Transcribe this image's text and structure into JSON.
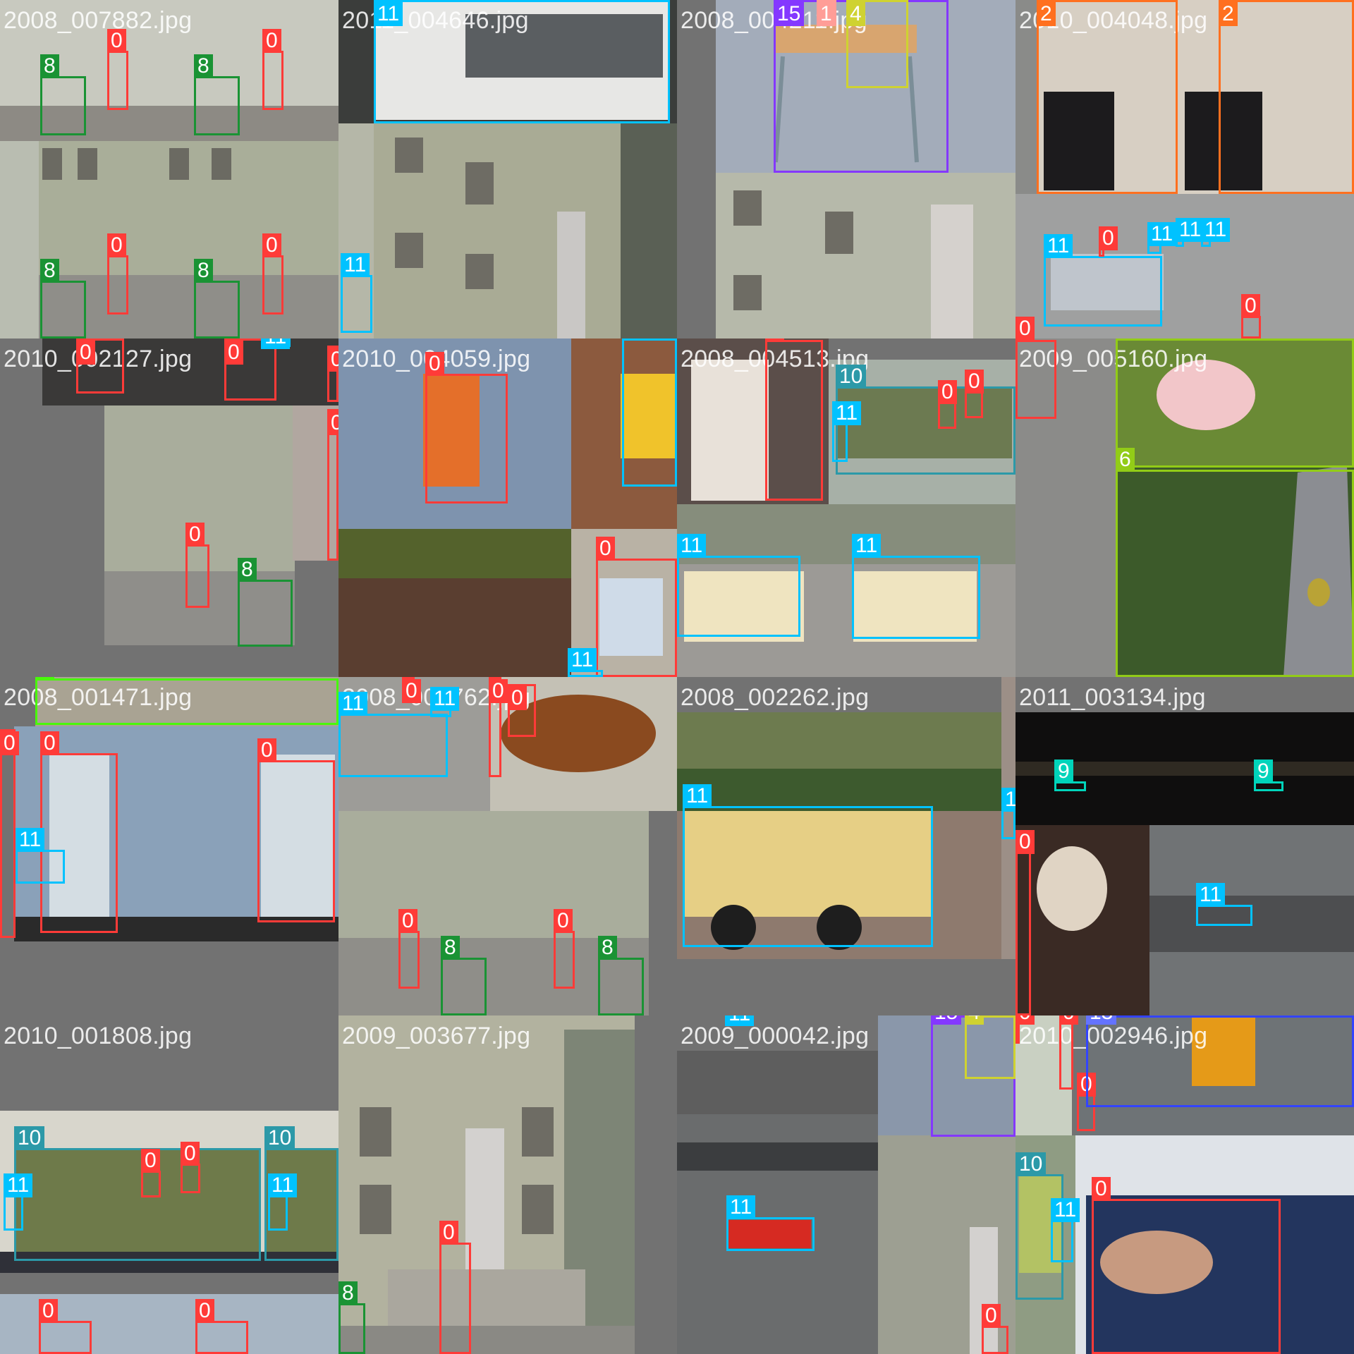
{
  "tiles": [
    {
      "filename": "2008_007882.jpg",
      "labels": [
        "0",
        "0",
        "8",
        "8",
        "0",
        "0",
        "8",
        "8"
      ]
    },
    {
      "filename": "2011_004646.jpg",
      "labels": [
        "11",
        "11"
      ]
    },
    {
      "filename": "2008_004211.jpg",
      "labels": [
        "15",
        "1",
        "4"
      ]
    },
    {
      "filename": "2010_004048.jpg",
      "labels": [
        "2",
        "2",
        "11",
        "0",
        "11",
        "11",
        "11",
        "0",
        "0"
      ]
    },
    {
      "filename": "2010_002127.jpg",
      "labels": [
        "0",
        "0",
        "11",
        "0",
        "0",
        "0",
        "8"
      ]
    },
    {
      "filename": "2010_004059.jpg",
      "labels": [
        "0",
        "11",
        "0",
        "11"
      ]
    },
    {
      "filename": "2008_004513.jpg",
      "labels": [
        "0",
        "10",
        "0",
        "0",
        "11",
        "11",
        "11"
      ]
    },
    {
      "filename": "2009_005160.jpg",
      "labels": [
        "0",
        "6",
        "6"
      ]
    },
    {
      "filename": "2008_001471.jpg",
      "labels": [
        "5",
        "0",
        "0",
        "0",
        "11"
      ]
    },
    {
      "filename": "2008_001762.jpg",
      "labels": [
        "11",
        "0",
        "11",
        "0",
        "0",
        "0",
        "8",
        "0",
        "8"
      ]
    },
    {
      "filename": "2008_002262.jpg",
      "labels": [
        "11",
        "11"
      ]
    },
    {
      "filename": "2011_003134.jpg",
      "labels": [
        "9",
        "9",
        "0",
        "11"
      ]
    },
    {
      "filename": "2010_001808.jpg",
      "labels": [
        "10",
        "10",
        "0",
        "0",
        "11",
        "11",
        "0",
        "0"
      ]
    },
    {
      "filename": "2009_003677.jpg",
      "labels": [
        "0",
        "8"
      ]
    },
    {
      "filename": "2009_000042.jpg",
      "labels": [
        "11",
        "15",
        "4",
        "11",
        "0"
      ]
    },
    {
      "filename": "2010_002946.jpg",
      "labels": [
        "0",
        "0",
        "13",
        "0",
        "10",
        "11",
        "0"
      ]
    }
  ],
  "colors": {
    "0": "#ff3b38",
    "1": "#ff9d97",
    "2": "#ff701f",
    "4": "#cfd231",
    "5": "#48f90a",
    "6": "#92cc17",
    "8": "#1a9334",
    "9": "#00d4bb",
    "10": "#2c99a8",
    "11": "#00c2ff",
    "13": "#3344ff",
    "15": "#8438ff"
  }
}
